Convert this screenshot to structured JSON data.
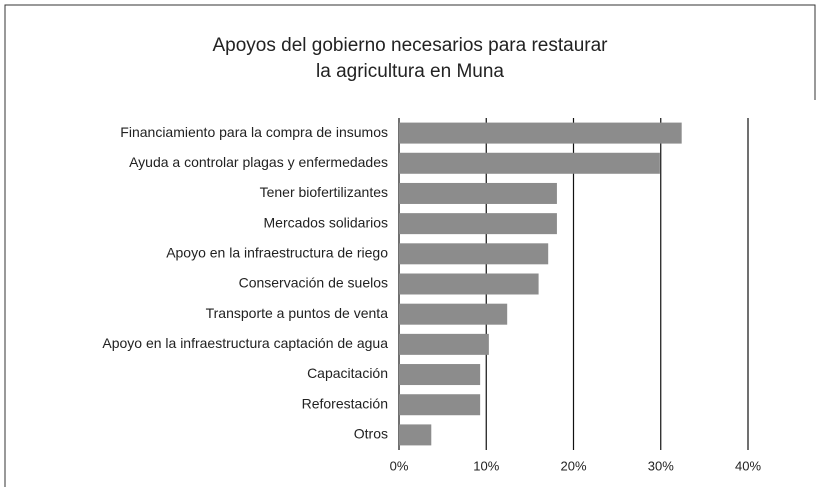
{
  "chart_data": {
    "type": "barh",
    "title": [
      "Apoyos del gobierno necesarios para restaurar",
      "la agricultura en Muna"
    ],
    "categories": [
      "Financiamiento para la compra de insumos",
      "Ayuda a controlar plagas y enfermedades",
      "Tener biofertilizantes",
      "Mercados solidarios",
      "Apoyo en la infraestructura de riego",
      "Conservación de suelos",
      "Transporte a puntos de venta",
      "Apoyo en la infraestructura captación de agua",
      "Capacitación",
      "Reforestación",
      "Otros"
    ],
    "values": [
      32.4,
      29.9,
      18.1,
      18.1,
      17.1,
      16.0,
      12.4,
      10.3,
      9.3,
      9.3,
      3.7
    ],
    "color": "#8c8c8c",
    "xlim": [
      0,
      40
    ],
    "xticks": [
      {
        "value": 0,
        "label": "0%"
      },
      {
        "value": 10,
        "label": "10%"
      },
      {
        "value": 20,
        "label": "20%"
      },
      {
        "value": 30,
        "label": "30%"
      },
      {
        "value": 40,
        "label": "40%"
      }
    ],
    "grid": true
  }
}
